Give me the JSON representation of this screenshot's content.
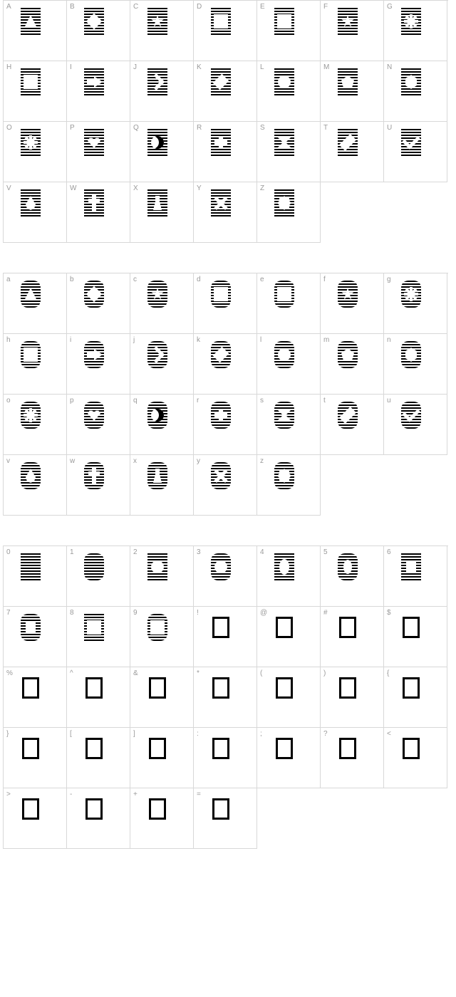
{
  "cell_border_color": "#d8d8d8",
  "label_color": "#9a9a9a",
  "label_fontsize": 10,
  "glyph_stripe_dark": "#000000",
  "glyph_stripe_light": "#ffffff",
  "glyph_width": 28,
  "glyph_height": 38,
  "empty_box_border": "#000000",
  "grids": [
    {
      "name": "uppercase",
      "cells": [
        {
          "label": "A",
          "type": "striped",
          "rounded": false,
          "shape": "triangle"
        },
        {
          "label": "B",
          "type": "striped",
          "rounded": false,
          "shape": "diamond4"
        },
        {
          "label": "C",
          "type": "striped",
          "rounded": false,
          "shape": "star5"
        },
        {
          "label": "D",
          "type": "striped",
          "rounded": false,
          "shape": "star6"
        },
        {
          "label": "E",
          "type": "striped",
          "rounded": false,
          "shape": "star8"
        },
        {
          "label": "F",
          "type": "striped",
          "rounded": false,
          "shape": "star5"
        },
        {
          "label": "G",
          "type": "striped",
          "rounded": false,
          "shape": "asterisk"
        },
        {
          "label": "H",
          "type": "striped",
          "rounded": false,
          "shape": "star8"
        },
        {
          "label": "I",
          "type": "striped",
          "rounded": false,
          "shape": "arrow"
        },
        {
          "label": "J",
          "type": "striped",
          "rounded": false,
          "shape": "chevron"
        },
        {
          "label": "K",
          "type": "striped",
          "rounded": false,
          "shape": "diamond"
        },
        {
          "label": "L",
          "type": "striped",
          "rounded": false,
          "shape": "circle"
        },
        {
          "label": "M",
          "type": "striped",
          "rounded": false,
          "shape": "pentagon"
        },
        {
          "label": "N",
          "type": "striped",
          "rounded": false,
          "shape": "hexagon"
        },
        {
          "label": "O",
          "type": "striped",
          "rounded": false,
          "shape": "asterisk"
        },
        {
          "label": "P",
          "type": "striped",
          "rounded": false,
          "shape": "heart"
        },
        {
          "label": "Q",
          "type": "striped",
          "rounded": false,
          "shape": "moon"
        },
        {
          "label": "R",
          "type": "striped",
          "rounded": false,
          "shape": "cross"
        },
        {
          "label": "S",
          "type": "striped",
          "rounded": false,
          "shape": "bowtie"
        },
        {
          "label": "T",
          "type": "striped",
          "rounded": false,
          "shape": "diamondT"
        },
        {
          "label": "U",
          "type": "striped",
          "rounded": false,
          "shape": "check"
        },
        {
          "label": "V",
          "type": "striped",
          "rounded": false,
          "shape": "drop"
        },
        {
          "label": "W",
          "type": "striped",
          "rounded": false,
          "shape": "latin"
        },
        {
          "label": "X",
          "type": "striped",
          "rounded": false,
          "shape": "keyhole"
        },
        {
          "label": "Y",
          "type": "striped",
          "rounded": false,
          "shape": "x"
        },
        {
          "label": "Z",
          "type": "striped",
          "rounded": false,
          "shape": "flower"
        }
      ]
    },
    {
      "name": "lowercase",
      "cells": [
        {
          "label": "a",
          "type": "striped",
          "rounded": true,
          "shape": "triangle"
        },
        {
          "label": "b",
          "type": "striped",
          "rounded": true,
          "shape": "diamond4"
        },
        {
          "label": "c",
          "type": "striped",
          "rounded": true,
          "shape": "star5"
        },
        {
          "label": "d",
          "type": "striped",
          "rounded": true,
          "shape": "star6"
        },
        {
          "label": "e",
          "type": "striped",
          "rounded": true,
          "shape": "star8"
        },
        {
          "label": "f",
          "type": "striped",
          "rounded": true,
          "shape": "star5"
        },
        {
          "label": "g",
          "type": "striped",
          "rounded": true,
          "shape": "asterisk"
        },
        {
          "label": "h",
          "type": "striped",
          "rounded": true,
          "shape": "star8"
        },
        {
          "label": "i",
          "type": "striped",
          "rounded": true,
          "shape": "arrow"
        },
        {
          "label": "j",
          "type": "striped",
          "rounded": true,
          "shape": "chevron"
        },
        {
          "label": "k",
          "type": "striped",
          "rounded": true,
          "shape": "diamond"
        },
        {
          "label": "l",
          "type": "striped",
          "rounded": true,
          "shape": "circle"
        },
        {
          "label": "m",
          "type": "striped",
          "rounded": true,
          "shape": "pentagon"
        },
        {
          "label": "n",
          "type": "striped",
          "rounded": true,
          "shape": "hexagon"
        },
        {
          "label": "o",
          "type": "striped",
          "rounded": true,
          "shape": "asterisk"
        },
        {
          "label": "p",
          "type": "striped",
          "rounded": true,
          "shape": "heart"
        },
        {
          "label": "q",
          "type": "striped",
          "rounded": true,
          "shape": "moon"
        },
        {
          "label": "r",
          "type": "striped",
          "rounded": true,
          "shape": "cross"
        },
        {
          "label": "s",
          "type": "striped",
          "rounded": true,
          "shape": "bowtie"
        },
        {
          "label": "t",
          "type": "striped",
          "rounded": true,
          "shape": "diamondT"
        },
        {
          "label": "u",
          "type": "striped",
          "rounded": true,
          "shape": "check"
        },
        {
          "label": "v",
          "type": "striped",
          "rounded": true,
          "shape": "drop"
        },
        {
          "label": "w",
          "type": "striped",
          "rounded": true,
          "shape": "latin"
        },
        {
          "label": "x",
          "type": "striped",
          "rounded": true,
          "shape": "keyhole"
        },
        {
          "label": "y",
          "type": "striped",
          "rounded": true,
          "shape": "x"
        },
        {
          "label": "z",
          "type": "striped",
          "rounded": true,
          "shape": "flower"
        }
      ]
    },
    {
      "name": "digits-symbols",
      "cells": [
        {
          "label": "0",
          "type": "striped",
          "rounded": false,
          "shape": "none"
        },
        {
          "label": "1",
          "type": "striped",
          "rounded": true,
          "shape": "none"
        },
        {
          "label": "2",
          "type": "striped",
          "rounded": false,
          "shape": "circle"
        },
        {
          "label": "3",
          "type": "striped",
          "rounded": true,
          "shape": "circle"
        },
        {
          "label": "4",
          "type": "striped",
          "rounded": false,
          "shape": "oval"
        },
        {
          "label": "5",
          "type": "striped",
          "rounded": true,
          "shape": "ovalS"
        },
        {
          "label": "6",
          "type": "striped",
          "rounded": false,
          "shape": "square"
        },
        {
          "label": "7",
          "type": "striped",
          "rounded": true,
          "shape": "square"
        },
        {
          "label": "8",
          "type": "striped",
          "rounded": false,
          "shape": "star8"
        },
        {
          "label": "9",
          "type": "striped",
          "rounded": true,
          "shape": "star8"
        },
        {
          "label": "!",
          "type": "empty"
        },
        {
          "label": "@",
          "type": "empty"
        },
        {
          "label": "#",
          "type": "empty"
        },
        {
          "label": "$",
          "type": "empty"
        },
        {
          "label": "%",
          "type": "empty"
        },
        {
          "label": "^",
          "type": "empty"
        },
        {
          "label": "&",
          "type": "empty"
        },
        {
          "label": "*",
          "type": "empty"
        },
        {
          "label": "(",
          "type": "empty"
        },
        {
          "label": ")",
          "type": "empty"
        },
        {
          "label": "{",
          "type": "empty"
        },
        {
          "label": "}",
          "type": "empty"
        },
        {
          "label": "[",
          "type": "empty"
        },
        {
          "label": "]",
          "type": "empty"
        },
        {
          "label": ":",
          "type": "empty"
        },
        {
          "label": ";",
          "type": "empty"
        },
        {
          "label": "?",
          "type": "empty"
        },
        {
          "label": "<",
          "type": "empty"
        },
        {
          "label": ">",
          "type": "empty"
        },
        {
          "label": "-",
          "type": "empty"
        },
        {
          "label": "+",
          "type": "empty"
        },
        {
          "label": "=",
          "type": "empty"
        }
      ]
    }
  ]
}
